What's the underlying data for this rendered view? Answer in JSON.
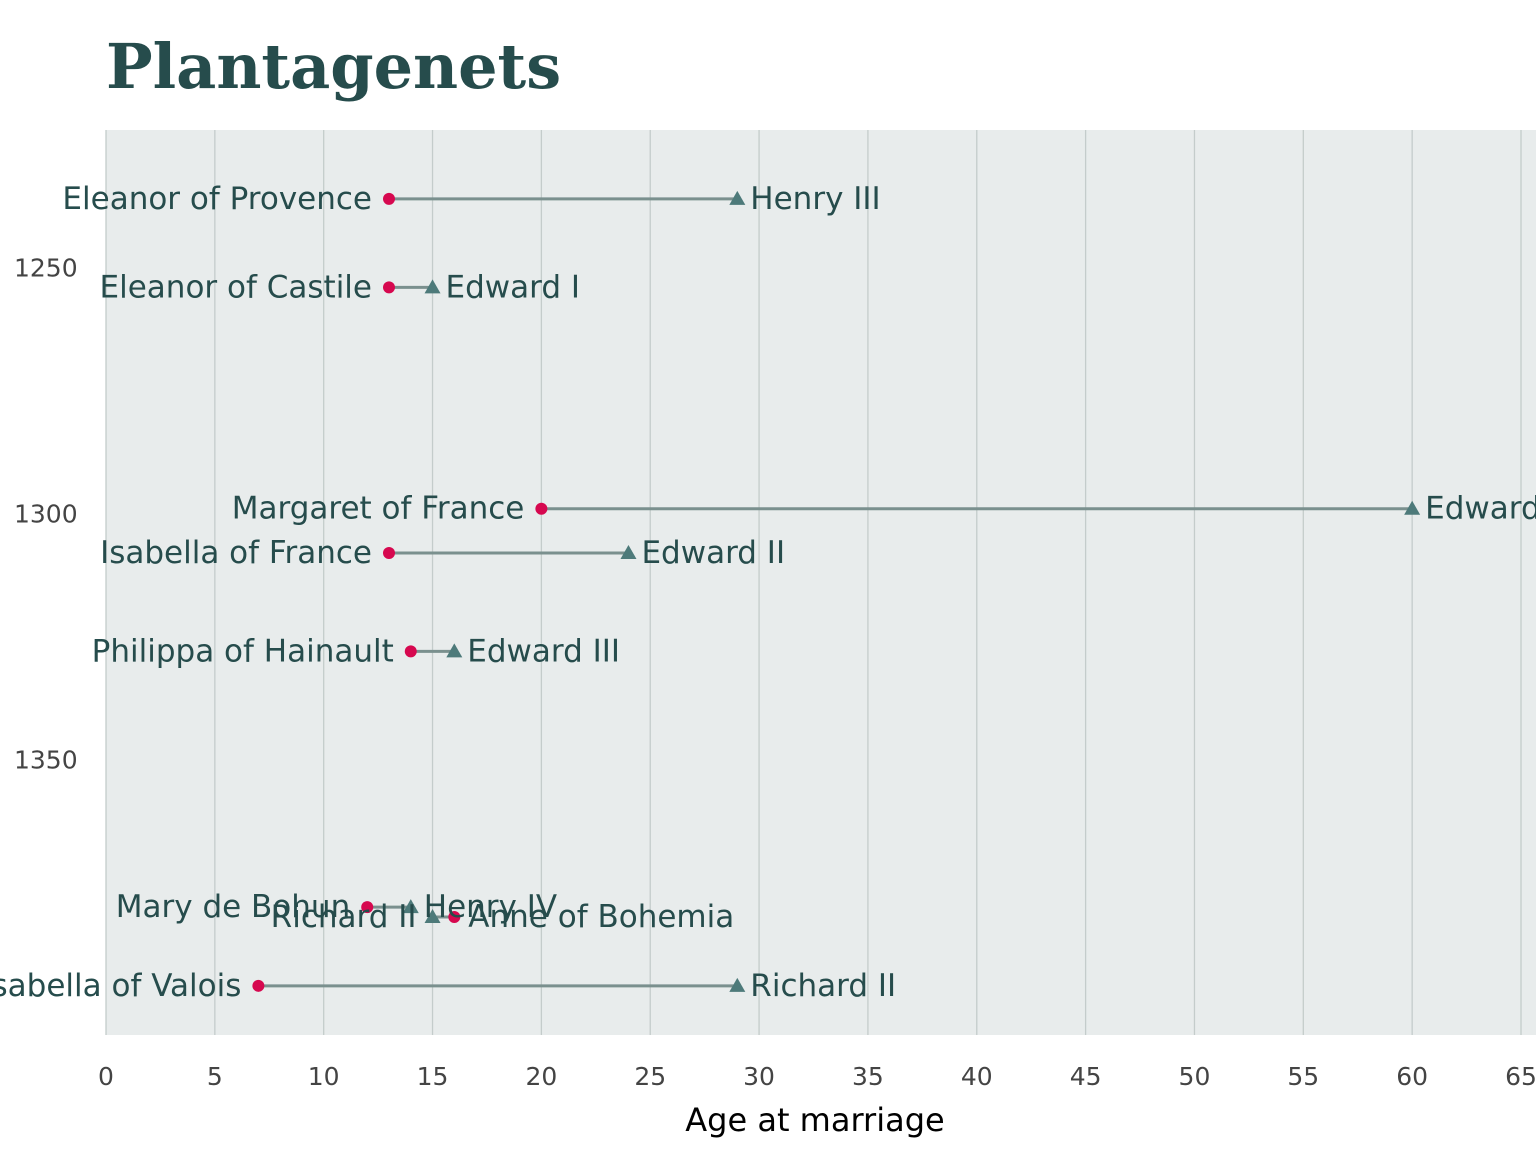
{
  "chart_data": {
    "type": "dumbbell",
    "title": "Plantagenets",
    "xlabel": "Age at marriage",
    "ylabel": "",
    "xlim": [
      0,
      65
    ],
    "ylim": [
      1222,
      1406
    ],
    "x_ticks": [
      0,
      5,
      10,
      15,
      20,
      25,
      30,
      35,
      40,
      45,
      50,
      55,
      60,
      65
    ],
    "y_ticks": [
      1250,
      1300,
      1350
    ],
    "grid": "vertical",
    "colors": {
      "wife": "#d6084f",
      "husband": "#4d7a7a",
      "connector": "#7a908e",
      "panel": "#e8ecec",
      "grid": "#c4cccb",
      "text": "#264c4c"
    },
    "marriages": [
      {
        "year": 1236,
        "wife": "Eleanor of Provence",
        "wife_age": 13,
        "husband": "Henry III",
        "husband_age": 29
      },
      {
        "year": 1254,
        "wife": "Eleanor of Castile",
        "wife_age": 13,
        "husband": "Edward I",
        "husband_age": 15
      },
      {
        "year": 1299,
        "wife": "Margaret of France",
        "wife_age": 20,
        "husband": "Edward I",
        "husband_age": 60
      },
      {
        "year": 1308,
        "wife": "Isabella of France",
        "wife_age": 13,
        "husband": "Edward II",
        "husband_age": 24
      },
      {
        "year": 1328,
        "wife": "Philippa of Hainault",
        "wife_age": 14,
        "husband": "Edward III",
        "husband_age": 16
      },
      {
        "year": 1380,
        "wife": "Mary de Bohun",
        "wife_age": 12,
        "husband": "Henry IV",
        "husband_age": 14
      },
      {
        "year": 1382,
        "wife": "Anne of Bohemia",
        "wife_age": 16,
        "husband": "Richard II",
        "husband_age": 15
      },
      {
        "year": 1396,
        "wife": "Isabella of Valois",
        "wife_age": 7,
        "husband": "Richard II",
        "husband_age": 29
      }
    ]
  }
}
